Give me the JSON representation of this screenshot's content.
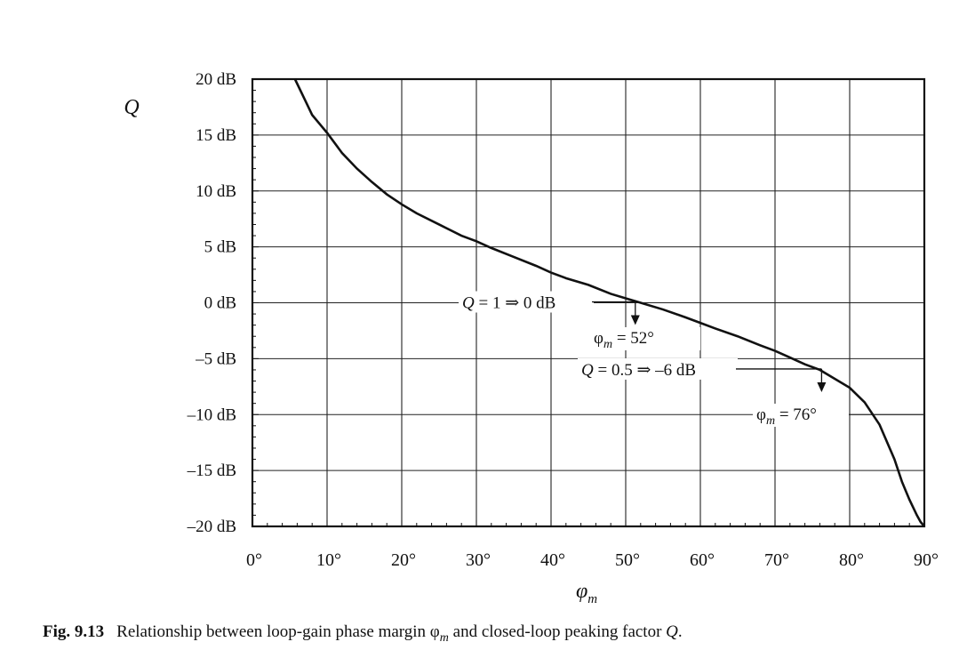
{
  "chart_data": {
    "type": "line",
    "xlabel": "φm",
    "ylabel": "Q",
    "xlim": [
      0,
      90
    ],
    "ylim": [
      -20,
      20
    ],
    "x_ticks": [
      0,
      10,
      20,
      30,
      40,
      50,
      60,
      70,
      80,
      90
    ],
    "x_tick_labels": [
      "0°",
      "10°",
      "20°",
      "30°",
      "40°",
      "50°",
      "60°",
      "70°",
      "80°",
      "90°"
    ],
    "y_ticks": [
      20,
      15,
      10,
      5,
      0,
      -5,
      -10,
      -15,
      -20
    ],
    "y_tick_labels": [
      "20 dB",
      "15 dB",
      "10 dB",
      "5 dB",
      "0 dB",
      "–5 dB",
      "–10 dB",
      "–15 dB",
      "–20 dB"
    ],
    "grid": true,
    "series": [
      {
        "x": [
          5.7,
          7,
          8,
          9,
          10,
          12,
          14,
          16,
          18,
          20,
          22,
          25,
          28,
          30,
          32,
          35,
          38,
          40,
          42,
          45,
          48,
          50,
          52,
          55,
          58,
          60,
          62,
          65,
          68,
          70,
          72,
          74,
          76,
          78,
          80,
          82,
          84,
          86,
          87,
          88,
          89,
          89.5,
          90
        ],
        "y": [
          20,
          18.2,
          16.8,
          16.0,
          15.2,
          13.4,
          12.0,
          10.8,
          9.7,
          8.8,
          8.0,
          7.0,
          6.0,
          5.5,
          4.9,
          4.1,
          3.3,
          2.7,
          2.2,
          1.6,
          0.8,
          0.4,
          0.0,
          -0.6,
          -1.3,
          -1.8,
          -2.3,
          -3.0,
          -3.8,
          -4.3,
          -4.9,
          -5.5,
          -6.0,
          -6.8,
          -7.6,
          -8.9,
          -10.9,
          -14.0,
          -16.0,
          -17.6,
          -19.0,
          -19.6,
          -20.0
        ]
      }
    ],
    "annotations": [
      {
        "label_parts": [
          "Q",
          " = 1 ⇒ 0 dB"
        ],
        "point": [
          52,
          0
        ],
        "result_parts": [
          "φ",
          "m",
          " = 52°"
        ]
      },
      {
        "label_parts": [
          "Q",
          " = 0.5 ⇒ –6 dB"
        ],
        "point": [
          76,
          -6
        ],
        "result_parts": [
          "φ",
          "m",
          " = 76°"
        ]
      }
    ]
  },
  "caption": {
    "number": "Fig. 9.13",
    "text_parts": [
      "Relationship between loop-gain phase margin φ",
      "m",
      " and closed-loop peaking factor ",
      "Q",
      "."
    ]
  }
}
